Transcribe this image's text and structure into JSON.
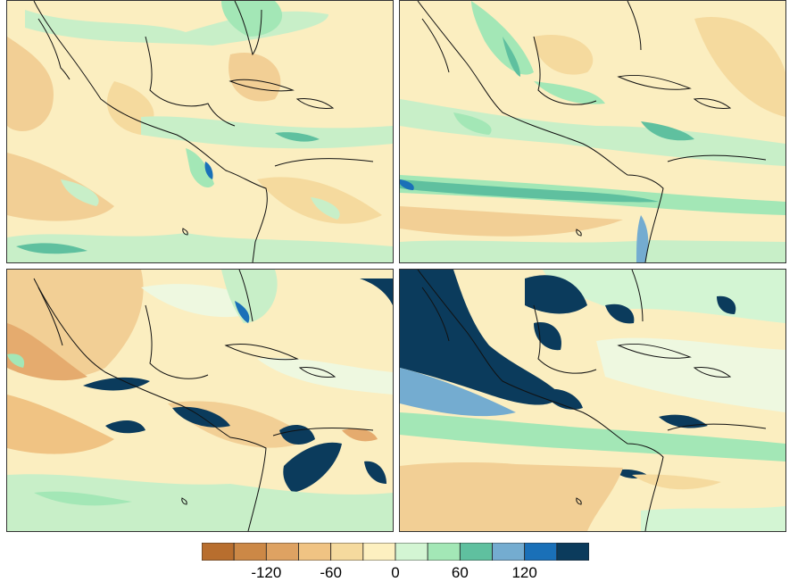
{
  "colorbar": {
    "colors": [
      "#b86e2e",
      "#cc8846",
      "#dea262",
      "#f0c383",
      "#f5da9e",
      "#fdf0c0",
      "#d3f5d3",
      "#a3e7b6",
      "#5fc09f",
      "#74acd0",
      "#1a70b8",
      "#0b3b5c"
    ],
    "tick_labels": [
      "-120",
      "-60",
      "0",
      "60",
      "120"
    ]
  },
  "panels": [
    {
      "name": "panel-top-left"
    },
    {
      "name": "panel-top-right"
    },
    {
      "name": "panel-bottom-left"
    },
    {
      "name": "panel-bottom-right"
    }
  ]
}
